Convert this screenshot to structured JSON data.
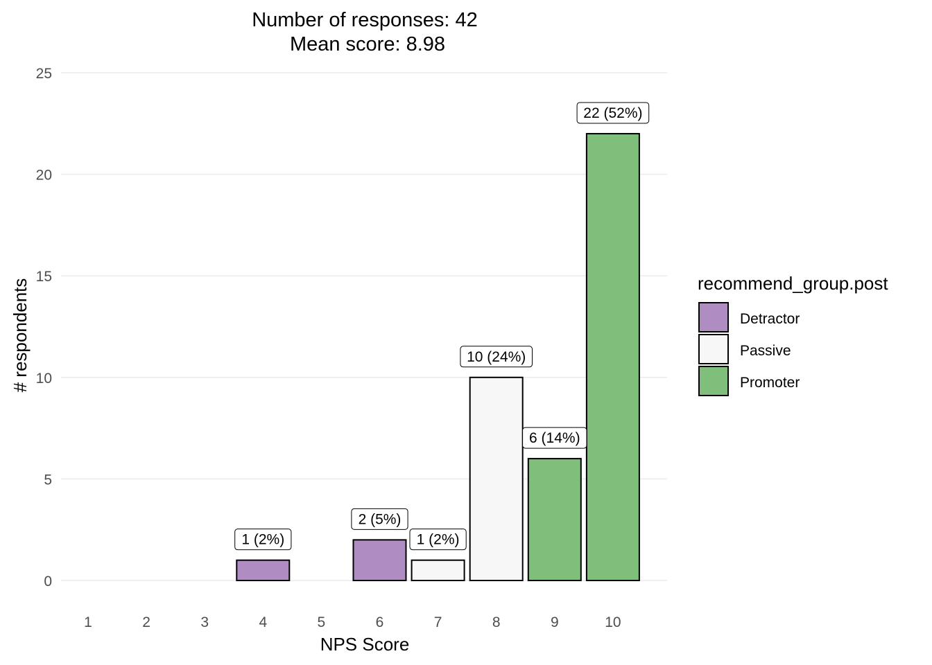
{
  "chart_data": {
    "type": "bar",
    "title": "Number of responses: 42",
    "subtitle": "Mean score: 8.98",
    "xlabel": "NPS Score",
    "ylabel": "# respondents",
    "ylim": [
      0,
      25
    ],
    "yticks": [
      0,
      5,
      10,
      15,
      20,
      25
    ],
    "categories": [
      "1",
      "2",
      "3",
      "4",
      "5",
      "6",
      "7",
      "8",
      "9",
      "10"
    ],
    "values": [
      0,
      0,
      0,
      1,
      0,
      2,
      1,
      10,
      6,
      22
    ],
    "groups": [
      null,
      null,
      null,
      "Detractor",
      null,
      "Detractor",
      "Passive",
      "Passive",
      "Promoter",
      "Promoter"
    ],
    "data_labels": [
      null,
      null,
      null,
      "1 (2%)",
      null,
      "2 (5%)",
      "1 (2%)",
      "10 (24%)",
      "6 (14%)",
      "22 (52%)"
    ],
    "grid": true,
    "legend": {
      "title": "recommend_group.post",
      "placement": "right",
      "entries": [
        {
          "name": "Detractor",
          "color": "#af8dc3"
        },
        {
          "name": "Passive",
          "color": "#f7f7f7"
        },
        {
          "name": "Promoter",
          "color": "#7fbf7b"
        }
      ]
    }
  }
}
